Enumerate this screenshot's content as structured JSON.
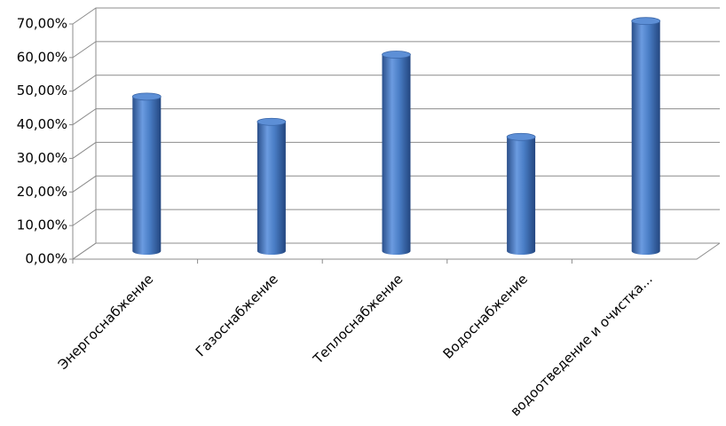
{
  "chart_data": {
    "type": "bar3d",
    "categories": [
      "Энергоснабжение",
      "Газоснабжение",
      "Теплоснабжение",
      "Водоснабжение",
      "водоотведение и очистка..."
    ],
    "values": [
      46,
      38.5,
      58.5,
      34,
      68.5
    ],
    "color": "#4a7ec6",
    "ylim": [
      0,
      70
    ],
    "yticks": [
      {
        "value": 0,
        "label": "0,00%"
      },
      {
        "value": 10,
        "label": "10,00%"
      },
      {
        "value": 20,
        "label": "20,00%"
      },
      {
        "value": 30,
        "label": "30,00%"
      },
      {
        "value": 40,
        "label": "40,00%"
      },
      {
        "value": 50,
        "label": "50,00%"
      },
      {
        "value": 60,
        "label": "60,00%"
      },
      {
        "value": 70,
        "label": "70,00%"
      }
    ],
    "grid": true
  }
}
